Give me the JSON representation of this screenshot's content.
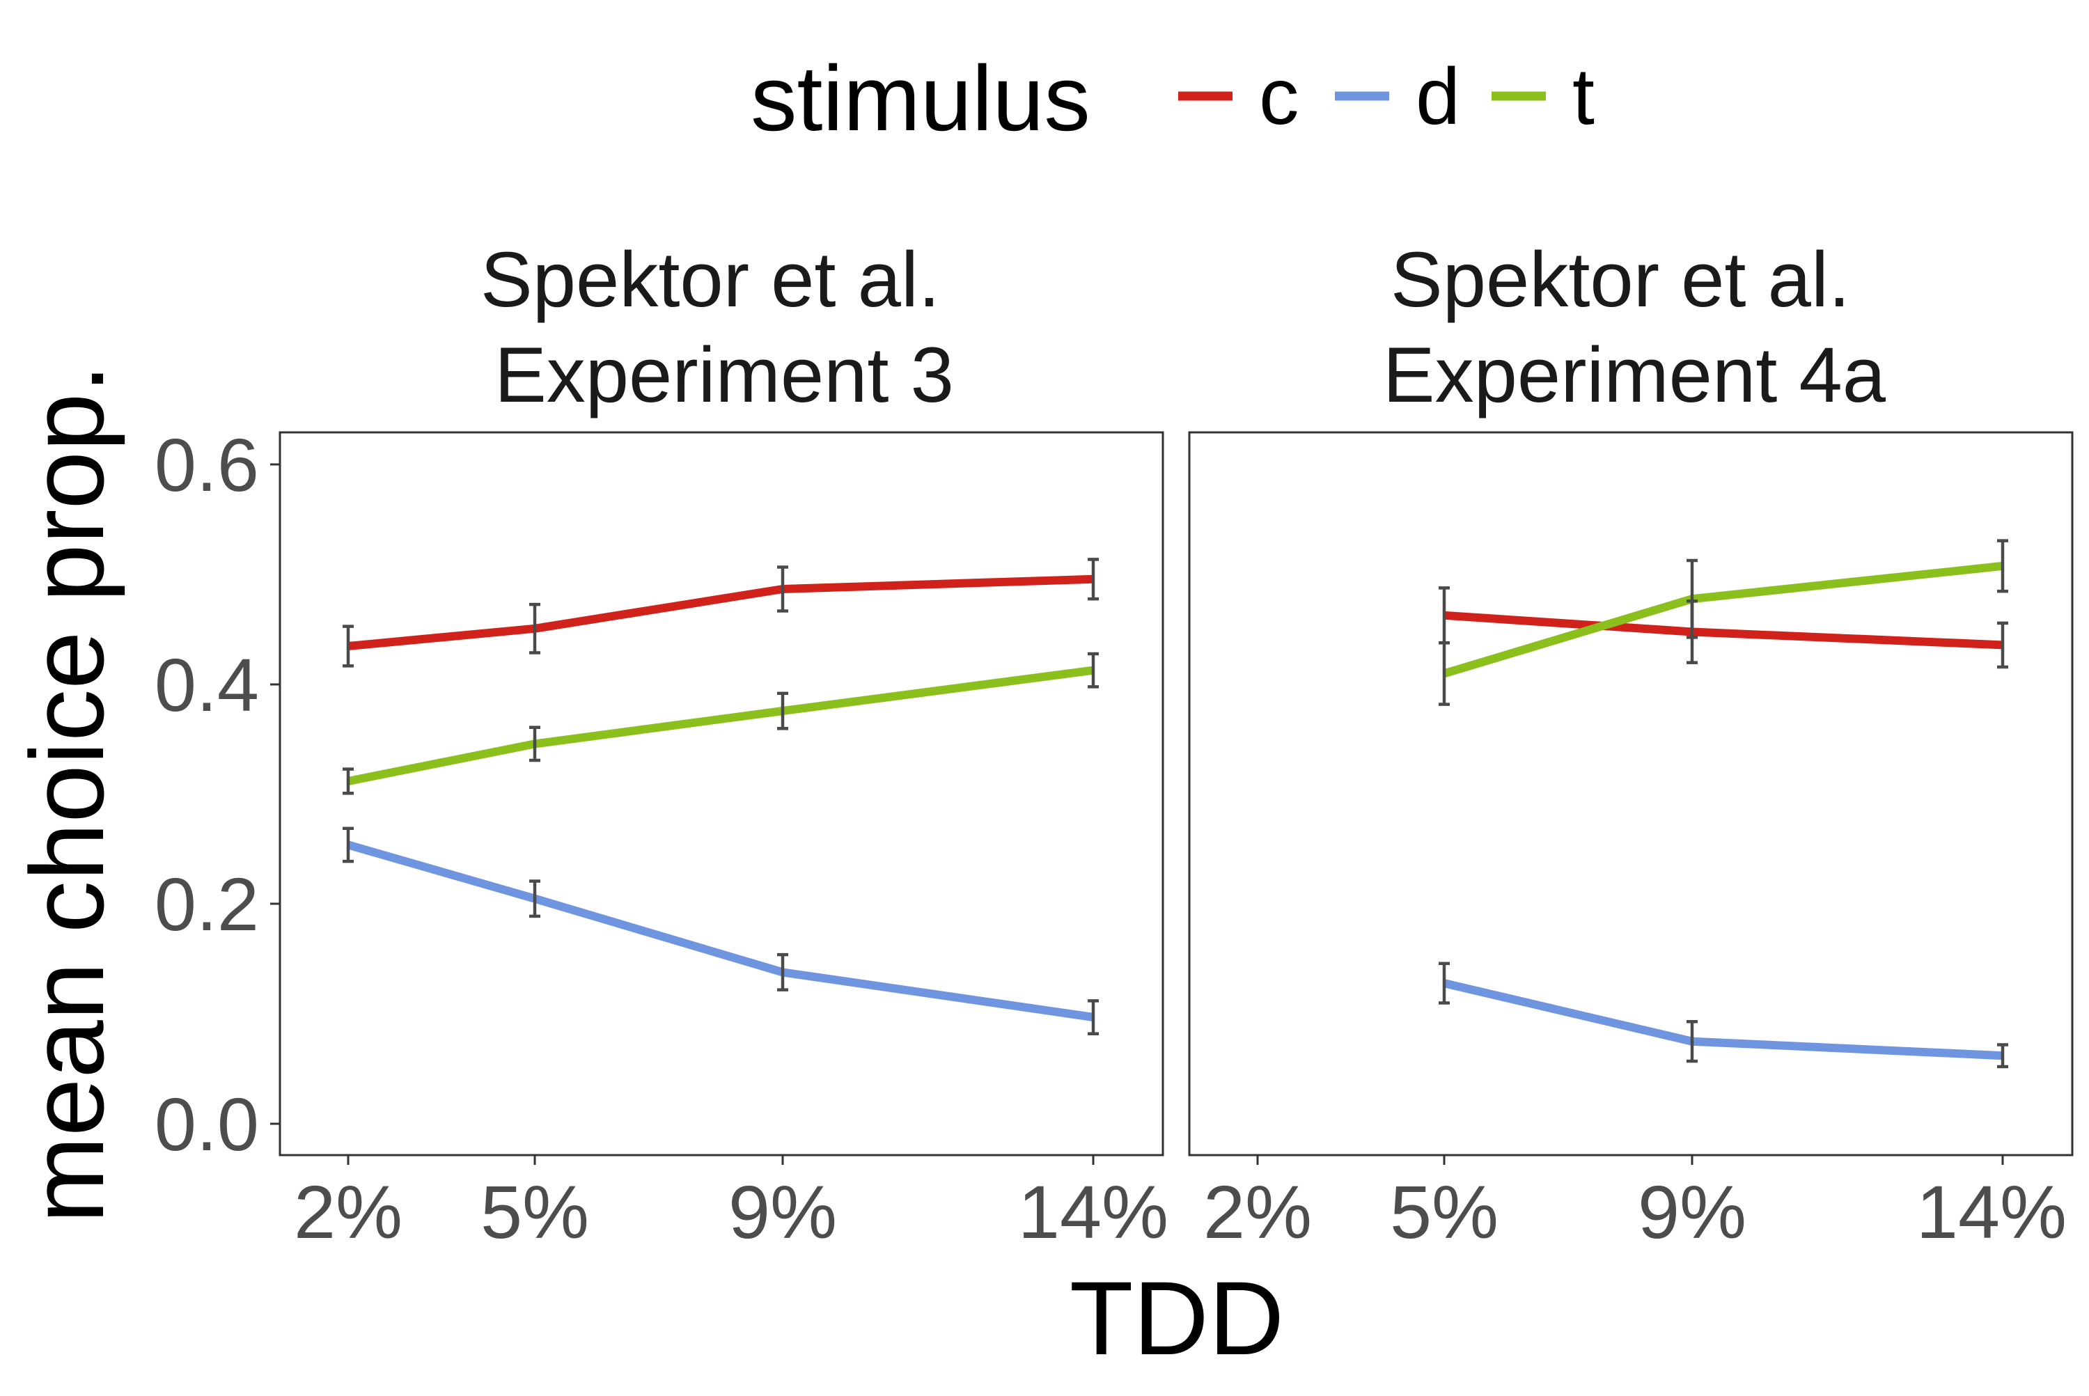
{
  "chart_data": {
    "type": "line",
    "legend": {
      "title": "stimulus",
      "entries": [
        {
          "key": "c",
          "label": "c",
          "color": "#D0221B"
        },
        {
          "key": "d",
          "label": "d",
          "color": "#6F94E0"
        },
        {
          "key": "t",
          "label": "t",
          "color": "#8BBF1C"
        }
      ],
      "placement": "top"
    },
    "xlabel": "TDD",
    "ylabel": "mean choice prop.",
    "x_ticks": [
      "2%",
      "5%",
      "9%",
      "14%"
    ],
    "y_ticks": [
      "0.0",
      "0.2",
      "0.4",
      "0.6"
    ],
    "ylim": [
      -0.03,
      0.63
    ],
    "grid": false,
    "panels": [
      {
        "title_line1": "Spektor et al.",
        "title_line2": "Experiment 3",
        "x": [
          2,
          5,
          9,
          14
        ],
        "series": [
          {
            "key": "c",
            "values": [
              0.435,
              0.451,
              0.487,
              0.496
            ],
            "err": [
              0.018,
              0.022,
              0.02,
              0.018
            ]
          },
          {
            "key": "d",
            "values": [
              0.254,
              0.205,
              0.138,
              0.097
            ],
            "err": [
              0.015,
              0.016,
              0.016,
              0.015
            ]
          },
          {
            "key": "t",
            "values": [
              0.312,
              0.346,
              0.376,
              0.413
            ],
            "err": [
              0.011,
              0.015,
              0.016,
              0.015
            ]
          }
        ]
      },
      {
        "title_line1": "Spektor et al.",
        "title_line2": "Experiment 4a",
        "x": [
          5,
          9,
          14
        ],
        "series": [
          {
            "key": "c",
            "values": [
              0.463,
              0.448,
              0.436
            ],
            "err": [
              0.025,
              0.028,
              0.02
            ]
          },
          {
            "key": "d",
            "values": [
              0.128,
              0.075,
              0.062
            ],
            "err": [
              0.018,
              0.018,
              0.01
            ]
          },
          {
            "key": "t",
            "values": [
              0.41,
              0.478,
              0.508
            ],
            "err": [
              0.028,
              0.035,
              0.023
            ]
          }
        ]
      }
    ]
  }
}
